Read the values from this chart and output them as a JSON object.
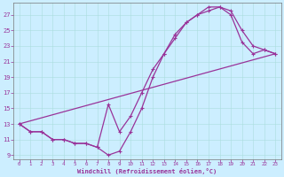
{
  "xlabel": "Windchill (Refroidissement éolien,°C)",
  "bg_color": "#cceeff",
  "line_color": "#993399",
  "xlim": [
    -0.5,
    23.5
  ],
  "ylim": [
    8.5,
    28.5
  ],
  "xticks": [
    0,
    1,
    2,
    3,
    4,
    5,
    6,
    7,
    8,
    9,
    10,
    11,
    12,
    13,
    14,
    15,
    16,
    17,
    18,
    19,
    20,
    21,
    22,
    23
  ],
  "yticks": [
    9,
    11,
    13,
    15,
    17,
    19,
    21,
    23,
    25,
    27
  ],
  "curve1_x": [
    0,
    1,
    2,
    3,
    4,
    5,
    6,
    7,
    8,
    9,
    10,
    11,
    12,
    13,
    14,
    15,
    16,
    17,
    18,
    19,
    20,
    21,
    22,
    23
  ],
  "curve1_y": [
    13,
    12,
    12,
    11,
    11,
    10.5,
    10.5,
    10,
    9,
    9.5,
    12,
    15,
    19,
    22,
    24.5,
    26,
    27,
    27.5,
    28,
    27,
    23.5,
    22,
    22.5,
    22
  ],
  "curve2_x": [
    0,
    1,
    2,
    3,
    4,
    5,
    6,
    7,
    8,
    9,
    10,
    11,
    12,
    13,
    14,
    15,
    16,
    17,
    18,
    19,
    20,
    21,
    22,
    23
  ],
  "curve2_y": [
    13,
    12,
    12,
    11,
    11,
    10.5,
    10.5,
    10,
    15.5,
    12,
    14,
    17,
    20,
    22,
    24,
    26,
    27,
    28,
    28,
    27.5,
    25,
    23,
    22.5,
    22
  ],
  "line3_x": [
    0,
    23
  ],
  "line3_y": [
    13,
    22
  ]
}
